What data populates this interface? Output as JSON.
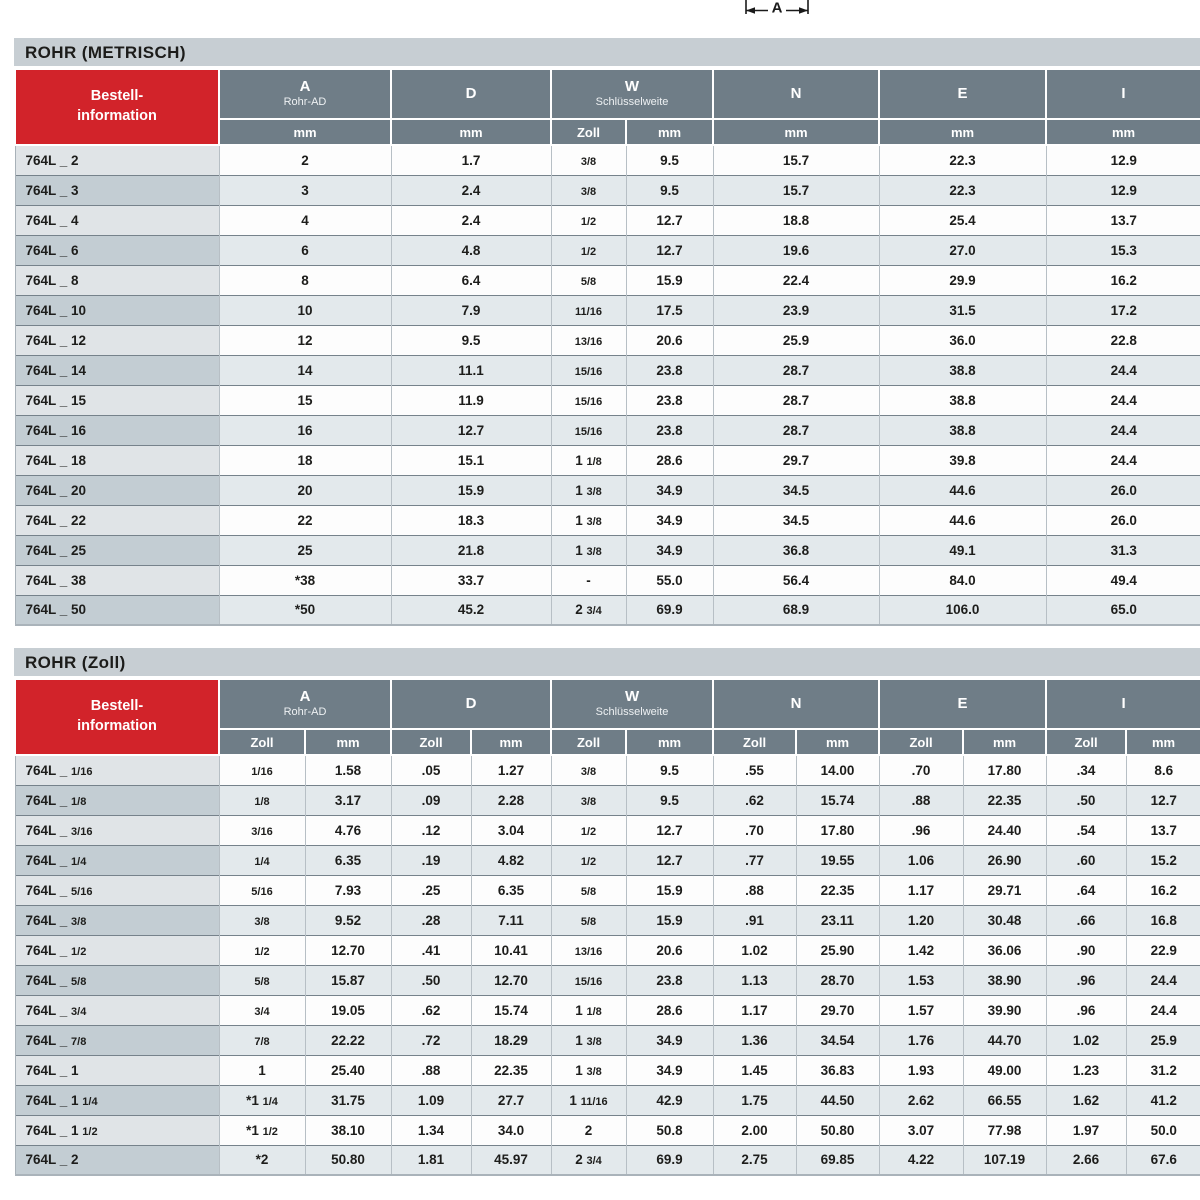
{
  "diagram": {
    "label": "A"
  },
  "colors": {
    "accent_red": "#d2232a",
    "header_slate": "#6f7d87",
    "section_bar_gray": "#c7ced3",
    "row_stripe": "#e3e9ec",
    "label_stripe_dark": "#c3cdd3"
  },
  "tables": [
    {
      "id": "metric",
      "section_title": "ROHR (METRISCH)",
      "corner": {
        "line1": "Bestell-",
        "line2": "information"
      },
      "columns": [
        {
          "label": "A",
          "sub": "Rohr-AD",
          "units": [
            "mm"
          ]
        },
        {
          "label": "D",
          "sub": "",
          "units": [
            "mm"
          ]
        },
        {
          "label": "W",
          "sub": "Schlüsselweite",
          "units": [
            "Zoll",
            "mm"
          ]
        },
        {
          "label": "N",
          "sub": "",
          "units": [
            "mm"
          ]
        },
        {
          "label": "E",
          "sub": "",
          "units": [
            "mm"
          ]
        },
        {
          "label": "I",
          "sub": "",
          "units": [
            "mm"
          ]
        }
      ],
      "rows": [
        [
          "764L _ 2",
          "2",
          "1.7",
          "3/8",
          "9.5",
          "15.7",
          "22.3",
          "12.9"
        ],
        [
          "764L _ 3",
          "3",
          "2.4",
          "3/8",
          "9.5",
          "15.7",
          "22.3",
          "12.9"
        ],
        [
          "764L _ 4",
          "4",
          "2.4",
          "1/2",
          "12.7",
          "18.8",
          "25.4",
          "13.7"
        ],
        [
          "764L _ 6",
          "6",
          "4.8",
          "1/2",
          "12.7",
          "19.6",
          "27.0",
          "15.3"
        ],
        [
          "764L _ 8",
          "8",
          "6.4",
          "5/8",
          "15.9",
          "22.4",
          "29.9",
          "16.2"
        ],
        [
          "764L _ 10",
          "10",
          "7.9",
          "11/16",
          "17.5",
          "23.9",
          "31.5",
          "17.2"
        ],
        [
          "764L _ 12",
          "12",
          "9.5",
          "13/16",
          "20.6",
          "25.9",
          "36.0",
          "22.8"
        ],
        [
          "764L _ 14",
          "14",
          "11.1",
          "15/16",
          "23.8",
          "28.7",
          "38.8",
          "24.4"
        ],
        [
          "764L _ 15",
          "15",
          "11.9",
          "15/16",
          "23.8",
          "28.7",
          "38.8",
          "24.4"
        ],
        [
          "764L _ 16",
          "16",
          "12.7",
          "15/16",
          "23.8",
          "28.7",
          "38.8",
          "24.4"
        ],
        [
          "764L _ 18",
          "18",
          "15.1",
          "1 1/8",
          "28.6",
          "29.7",
          "39.8",
          "24.4"
        ],
        [
          "764L _ 20",
          "20",
          "15.9",
          "1 3/8",
          "34.9",
          "34.5",
          "44.6",
          "26.0"
        ],
        [
          "764L _ 22",
          "22",
          "18.3",
          "1 3/8",
          "34.9",
          "34.5",
          "44.6",
          "26.0"
        ],
        [
          "764L _ 25",
          "25",
          "21.8",
          "1 3/8",
          "34.9",
          "36.8",
          "49.1",
          "31.3"
        ],
        [
          "764L _ 38",
          "*38",
          "33.7",
          "-",
          "55.0",
          "56.4",
          "84.0",
          "49.4"
        ],
        [
          "764L _ 50",
          "*50",
          "45.2",
          "2 3/4",
          "69.9",
          "68.9",
          "106.0",
          "65.0"
        ]
      ]
    },
    {
      "id": "zoll",
      "section_title": "ROHR (Zoll)",
      "corner": {
        "line1": "Bestell-",
        "line2": "information"
      },
      "columns": [
        {
          "label": "A",
          "sub": "Rohr-AD",
          "units": [
            "Zoll",
            "mm"
          ]
        },
        {
          "label": "D",
          "sub": "",
          "units": [
            "Zoll",
            "mm"
          ]
        },
        {
          "label": "W",
          "sub": "Schlüsselweite",
          "units": [
            "Zoll",
            "mm"
          ]
        },
        {
          "label": "N",
          "sub": "",
          "units": [
            "Zoll",
            "mm"
          ]
        },
        {
          "label": "E",
          "sub": "",
          "units": [
            "Zoll",
            "mm"
          ]
        },
        {
          "label": "I",
          "sub": "",
          "units": [
            "Zoll",
            "mm"
          ]
        }
      ],
      "rows": [
        [
          "764L _ 1/16",
          "1/16",
          "1.58",
          ".05",
          "1.27",
          "3/8",
          "9.5",
          ".55",
          "14.00",
          ".70",
          "17.80",
          ".34",
          "8.6"
        ],
        [
          "764L _ 1/8",
          "1/8",
          "3.17",
          ".09",
          "2.28",
          "3/8",
          "9.5",
          ".62",
          "15.74",
          ".88",
          "22.35",
          ".50",
          "12.7"
        ],
        [
          "764L _ 3/16",
          "3/16",
          "4.76",
          ".12",
          "3.04",
          "1/2",
          "12.7",
          ".70",
          "17.80",
          ".96",
          "24.40",
          ".54",
          "13.7"
        ],
        [
          "764L _ 1/4",
          "1/4",
          "6.35",
          ".19",
          "4.82",
          "1/2",
          "12.7",
          ".77",
          "19.55",
          "1.06",
          "26.90",
          ".60",
          "15.2"
        ],
        [
          "764L _ 5/16",
          "5/16",
          "7.93",
          ".25",
          "6.35",
          "5/8",
          "15.9",
          ".88",
          "22.35",
          "1.17",
          "29.71",
          ".64",
          "16.2"
        ],
        [
          "764L _ 3/8",
          "3/8",
          "9.52",
          ".28",
          "7.11",
          "5/8",
          "15.9",
          ".91",
          "23.11",
          "1.20",
          "30.48",
          ".66",
          "16.8"
        ],
        [
          "764L _ 1/2",
          "1/2",
          "12.70",
          ".41",
          "10.41",
          "13/16",
          "20.6",
          "1.02",
          "25.90",
          "1.42",
          "36.06",
          ".90",
          "22.9"
        ],
        [
          "764L _ 5/8",
          "5/8",
          "15.87",
          ".50",
          "12.70",
          "15/16",
          "23.8",
          "1.13",
          "28.70",
          "1.53",
          "38.90",
          ".96",
          "24.4"
        ],
        [
          "764L _ 3/4",
          "3/4",
          "19.05",
          ".62",
          "15.74",
          "1 1/8",
          "28.6",
          "1.17",
          "29.70",
          "1.57",
          "39.90",
          ".96",
          "24.4"
        ],
        [
          "764L _ 7/8",
          "7/8",
          "22.22",
          ".72",
          "18.29",
          "1 3/8",
          "34.9",
          "1.36",
          "34.54",
          "1.76",
          "44.70",
          "1.02",
          "25.9"
        ],
        [
          "764L _ 1",
          "1",
          "25.40",
          ".88",
          "22.35",
          "1 3/8",
          "34.9",
          "1.45",
          "36.83",
          "1.93",
          "49.00",
          "1.23",
          "31.2"
        ],
        [
          "764L _ 1 1/4",
          "*1 1/4",
          "31.75",
          "1.09",
          "27.7",
          "1 11/16",
          "42.9",
          "1.75",
          "44.50",
          "2.62",
          "66.55",
          "1.62",
          "41.2"
        ],
        [
          "764L _ 1 1/2",
          "*1 1/2",
          "38.10",
          "1.34",
          "34.0",
          "2",
          "50.8",
          "2.00",
          "50.80",
          "3.07",
          "77.98",
          "1.97",
          "50.0"
        ],
        [
          "764L _ 2",
          "*2",
          "50.80",
          "1.81",
          "45.97",
          "2 3/4",
          "69.9",
          "2.75",
          "69.85",
          "4.22",
          "107.19",
          "2.66",
          "67.6"
        ]
      ]
    }
  ]
}
